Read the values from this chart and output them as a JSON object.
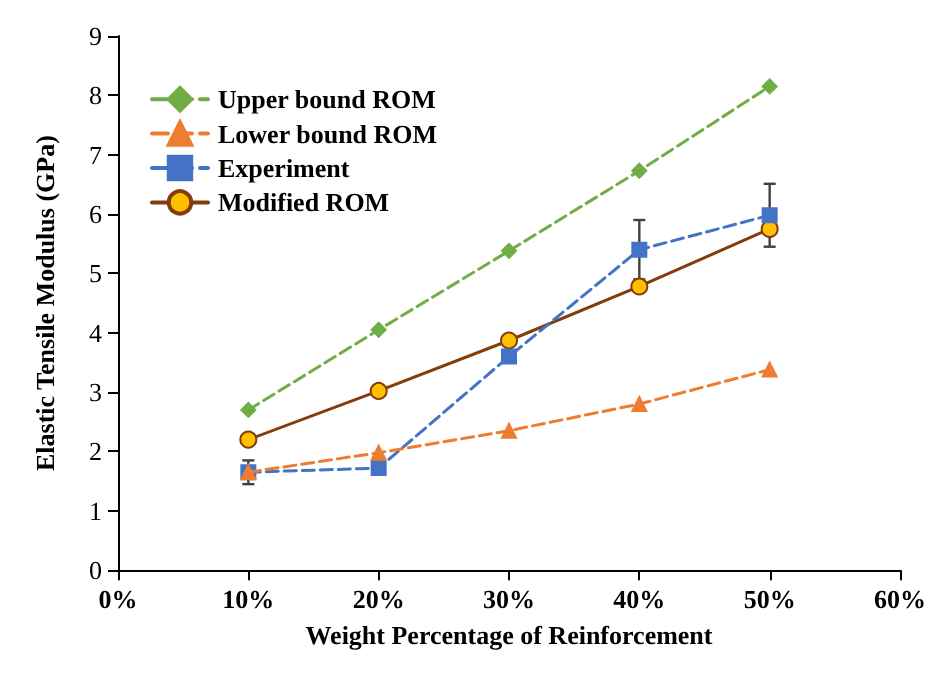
{
  "chart_data": {
    "type": "line",
    "xlabel": "Weight Percentage of Reinforcement",
    "ylabel": "Elastic Tensile Modulus (GPa)",
    "x": [
      10,
      20,
      30,
      40,
      50
    ],
    "xlim": [
      0,
      60
    ],
    "xticks": [
      {
        "value": 0,
        "label": "0%"
      },
      {
        "value": 10,
        "label": "10%"
      },
      {
        "value": 20,
        "label": "20%"
      },
      {
        "value": 30,
        "label": "30%"
      },
      {
        "value": 40,
        "label": "40%"
      },
      {
        "value": 50,
        "label": "50%"
      },
      {
        "value": 60,
        "label": "60%"
      }
    ],
    "ylim": [
      0,
      9
    ],
    "yticks": [
      0,
      1,
      2,
      3,
      4,
      5,
      6,
      7,
      8,
      9
    ],
    "grid": false,
    "legend": "top left",
    "series": [
      {
        "name": "Upper bound ROM",
        "color": "#70ad47",
        "marker": "diamond",
        "line_style": "dashed",
        "values": [
          2.7,
          4.05,
          5.38,
          6.73,
          8.15
        ]
      },
      {
        "name": "Lower bound ROM",
        "color": "#ed7d31",
        "marker": "triangle",
        "line_style": "dashed",
        "values": [
          1.65,
          1.98,
          2.35,
          2.8,
          3.38
        ]
      },
      {
        "name": "Experiment",
        "color": "#4472c4",
        "marker": "square",
        "line_style": "dashed",
        "values": [
          1.65,
          1.72,
          3.6,
          5.4,
          5.98
        ],
        "errors": [
          0.2,
          null,
          null,
          0.5,
          0.53
        ]
      },
      {
        "name": "Modified ROM",
        "color": "#843c0c",
        "marker": "circle",
        "line_style": "solid",
        "values": [
          2.2,
          3.02,
          3.87,
          4.78,
          5.75
        ]
      }
    ]
  }
}
